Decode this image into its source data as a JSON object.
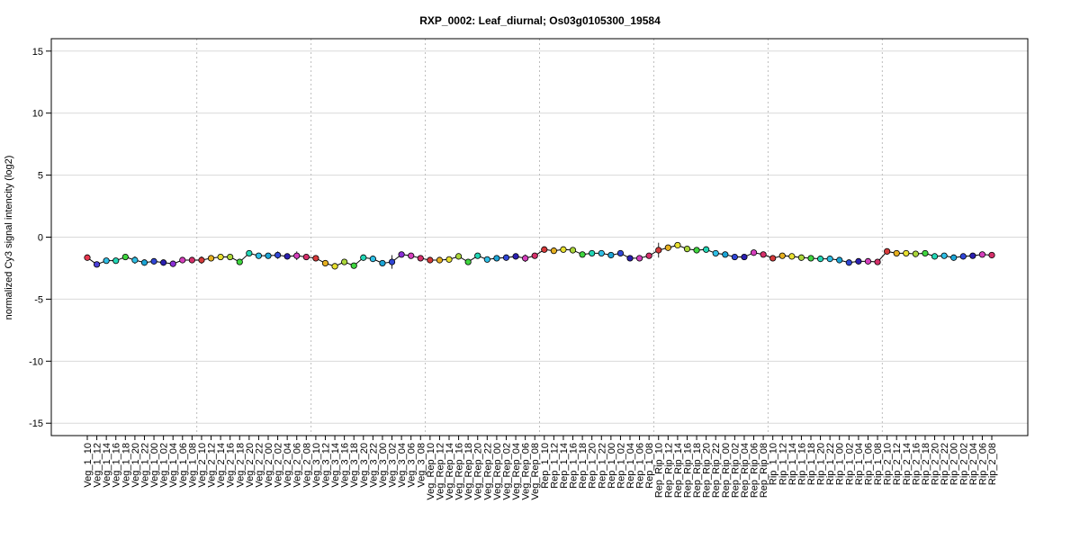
{
  "chart_data": {
    "type": "line",
    "title": "RXP_0002: Leaf_diurnal; Os03g0105300_19584",
    "ylabel": "normalized Cy3 signal intencity (log2)",
    "xlabel": "",
    "ylim": [
      -16,
      16
    ],
    "yticks": [
      -15,
      -10,
      -5,
      0,
      5,
      10,
      15
    ],
    "grid": true,
    "categories": [
      "Veg_1_10",
      "Veg_1_12",
      "Veg_1_14",
      "Veg_1_16",
      "Veg_1_18",
      "Veg_1_20",
      "Veg_1_22",
      "Veg_1_00",
      "Veg_1_02",
      "Veg_1_04",
      "Veg_1_06",
      "Veg_1_08",
      "Veg_2_10",
      "Veg_2_12",
      "Veg_2_14",
      "Veg_2_16",
      "Veg_2_18",
      "Veg_2_20",
      "Veg_2_22",
      "Veg_2_00",
      "Veg_2_02",
      "Veg_2_04",
      "Veg_2_06",
      "Veg_2_08",
      "Veg_3_10",
      "Veg_3_12",
      "Veg_3_14",
      "Veg_3_16",
      "Veg_3_18",
      "Veg_3_20",
      "Veg_3_22",
      "Veg_3_00",
      "Veg_3_02",
      "Veg_3_04",
      "Veg_3_06",
      "Veg_3_08",
      "Veg_Rep_10",
      "Veg_Rep_12",
      "Veg_Rep_14",
      "Veg_Rep_16",
      "Veg_Rep_18",
      "Veg_Rep_20",
      "Veg_Rep_22",
      "Veg_Rep_00",
      "Veg_Rep_02",
      "Veg_Rep_04",
      "Veg_Rep_06",
      "Veg_Rep_08",
      "Rep_1_10",
      "Rep_1_12",
      "Rep_1_14",
      "Rep_1_16",
      "Rep_1_18",
      "Rep_1_20",
      "Rep_1_22",
      "Rep_1_00",
      "Rep_1_02",
      "Rep_1_04",
      "Rep_1_06",
      "Rep_1_08",
      "Rep_Rip_10",
      "Rep_Rip_12",
      "Rep_Rip_14",
      "Rep_Rip_16",
      "Rep_Rip_18",
      "Rep_Rip_20",
      "Rep_Rip_22",
      "Rep_Rip_00",
      "Rep_Rip_02",
      "Rep_Rip_04",
      "Rep_Rip_06",
      "Rep_Rip_08",
      "Rip_1_10",
      "Rip_1_12",
      "Rip_1_14",
      "Rip_1_16",
      "Rip_1_18",
      "Rip_1_20",
      "Rip_1_22",
      "Rip_1_00",
      "Rip_1_02",
      "Rip_1_04",
      "Rip_1_06",
      "Rip_1_08",
      "Rip_2_10",
      "Rip_2_12",
      "Rip_2_14",
      "Rip_2_16",
      "Rip_2_18",
      "Rip_2_20",
      "Rip_2_22",
      "Rip_2_00",
      "Rip_2_02",
      "Rip_2_04",
      "Rip_2_06",
      "Rip_2_08"
    ],
    "values": [
      -1.65,
      -2.2,
      -1.9,
      -1.9,
      -1.6,
      -1.85,
      -2.05,
      -1.95,
      -2.05,
      -2.15,
      -1.85,
      -1.85,
      -1.85,
      -1.7,
      -1.6,
      -1.6,
      -2.0,
      -1.3,
      -1.5,
      -1.5,
      -1.45,
      -1.55,
      -1.5,
      -1.6,
      -1.7,
      -2.1,
      -2.35,
      -2.0,
      -2.3,
      -1.65,
      -1.75,
      -2.1,
      -2.0,
      -1.4,
      -1.5,
      -1.7,
      -1.85,
      -1.85,
      -1.8,
      -1.55,
      -2.0,
      -1.5,
      -1.8,
      -1.7,
      -1.65,
      -1.55,
      -1.7,
      -1.5,
      -1.0,
      -1.1,
      -1.0,
      -1.05,
      -1.4,
      -1.3,
      -1.3,
      -1.45,
      -1.3,
      -1.7,
      -1.7,
      -1.5,
      -1.05,
      -0.85,
      -0.65,
      -0.95,
      -1.05,
      -1.0,
      -1.3,
      -1.4,
      -1.6,
      -1.6,
      -1.25,
      -1.4,
      -1.7,
      -1.5,
      -1.55,
      -1.65,
      -1.7,
      -1.75,
      -1.75,
      -1.85,
      -2.05,
      -1.95,
      -1.95,
      -2.0,
      -1.15,
      -1.3,
      -1.3,
      -1.35,
      -1.3,
      -1.55,
      -1.5,
      -1.65,
      -1.55,
      -1.5,
      -1.4,
      -1.45
    ],
    "errors": [
      0.1,
      0.1,
      0.1,
      0.1,
      0.1,
      0.3,
      0.1,
      0.1,
      0.1,
      0.1,
      0.1,
      0.1,
      0.3,
      0.1,
      0.1,
      0.1,
      0.1,
      0.1,
      0.1,
      0.1,
      0.3,
      0.1,
      0.35,
      0.1,
      0.1,
      0.1,
      0.1,
      0.1,
      0.1,
      0.1,
      0.1,
      0.1,
      0.55,
      0.1,
      0.1,
      0.1,
      0.25,
      0.1,
      0.1,
      0.1,
      0.1,
      0.1,
      0.1,
      0.1,
      0.1,
      0.1,
      0.3,
      0.1,
      0.2,
      0.1,
      0.1,
      0.1,
      0.2,
      0.1,
      0.1,
      0.1,
      0.1,
      0.1,
      0.1,
      0.1,
      0.6,
      0.1,
      0.1,
      0.1,
      0.1,
      0.1,
      0.1,
      0.1,
      0.1,
      0.1,
      0.1,
      0.1,
      0.1,
      0.1,
      0.1,
      0.1,
      0.1,
      0.1,
      0.1,
      0.1,
      0.1,
      0.1,
      0.1,
      0.1,
      0.25,
      0.1,
      0.1,
      0.1,
      0.1,
      0.1,
      0.1,
      0.1,
      0.1,
      0.1,
      0.1,
      0.1
    ],
    "point_colors": [
      "#e8384f",
      "#4b3fd6",
      "#2fbfe6",
      "#22d6b5",
      "#3fd63f",
      "#2fbfe6",
      "#1ca5d6",
      "#3046d6",
      "#2b1fb0",
      "#8a2fd6",
      "#d63fbd",
      "#d6306b",
      "#d63a3a",
      "#e6b020",
      "#e8e030",
      "#aad63a",
      "#3fd63f",
      "#22d6b5",
      "#2fbfe6",
      "#1ca5d6",
      "#3046d6",
      "#2b1fb0",
      "#d63fbd",
      "#d6306b",
      "#d63a3a",
      "#e6b020",
      "#e8e030",
      "#aad63a",
      "#3fd63f",
      "#22d6b5",
      "#2fbfe6",
      "#1ca5d6",
      "#3046d6",
      "#8a2fd6",
      "#d63fbd",
      "#d6306b",
      "#d63a3a",
      "#e6b020",
      "#e8e030",
      "#aad63a",
      "#3fd63f",
      "#22d6b5",
      "#2fbfe6",
      "#1ca5d6",
      "#3046d6",
      "#2b1fb0",
      "#d63fbd",
      "#d6306b",
      "#d63a3a",
      "#e6b020",
      "#e8e030",
      "#aad63a",
      "#3fd63f",
      "#22d6b5",
      "#2fbfe6",
      "#1ca5d6",
      "#3046d6",
      "#2b1fb0",
      "#d63fbd",
      "#d6306b",
      "#d63a3a",
      "#e6b020",
      "#e8e030",
      "#aad63a",
      "#3fd63f",
      "#22d6b5",
      "#2fbfe6",
      "#1ca5d6",
      "#3046d6",
      "#2b1fb0",
      "#d63fbd",
      "#d6306b",
      "#d63a3a",
      "#e6b020",
      "#e8e030",
      "#aad63a",
      "#3fd63f",
      "#22d6b5",
      "#2fbfe6",
      "#1ca5d6",
      "#3046d6",
      "#2b1fb0",
      "#d63fbd",
      "#d6306b",
      "#d63a3a",
      "#e6b020",
      "#e8e030",
      "#aad63a",
      "#3fd63f",
      "#22d6b5",
      "#2fbfe6",
      "#1ca5d6",
      "#3046d6",
      "#2b1fb0",
      "#d63fbd",
      "#d6306b"
    ],
    "group_separators_after": [
      "Veg_1_08",
      "Veg_2_08",
      "Veg_3_08",
      "Veg_Rep_08",
      "Rep_1_08",
      "Rep_Rip_08",
      "Rip_1_08"
    ],
    "line_color": "#000000",
    "grid_color": "#d9d9d9"
  }
}
